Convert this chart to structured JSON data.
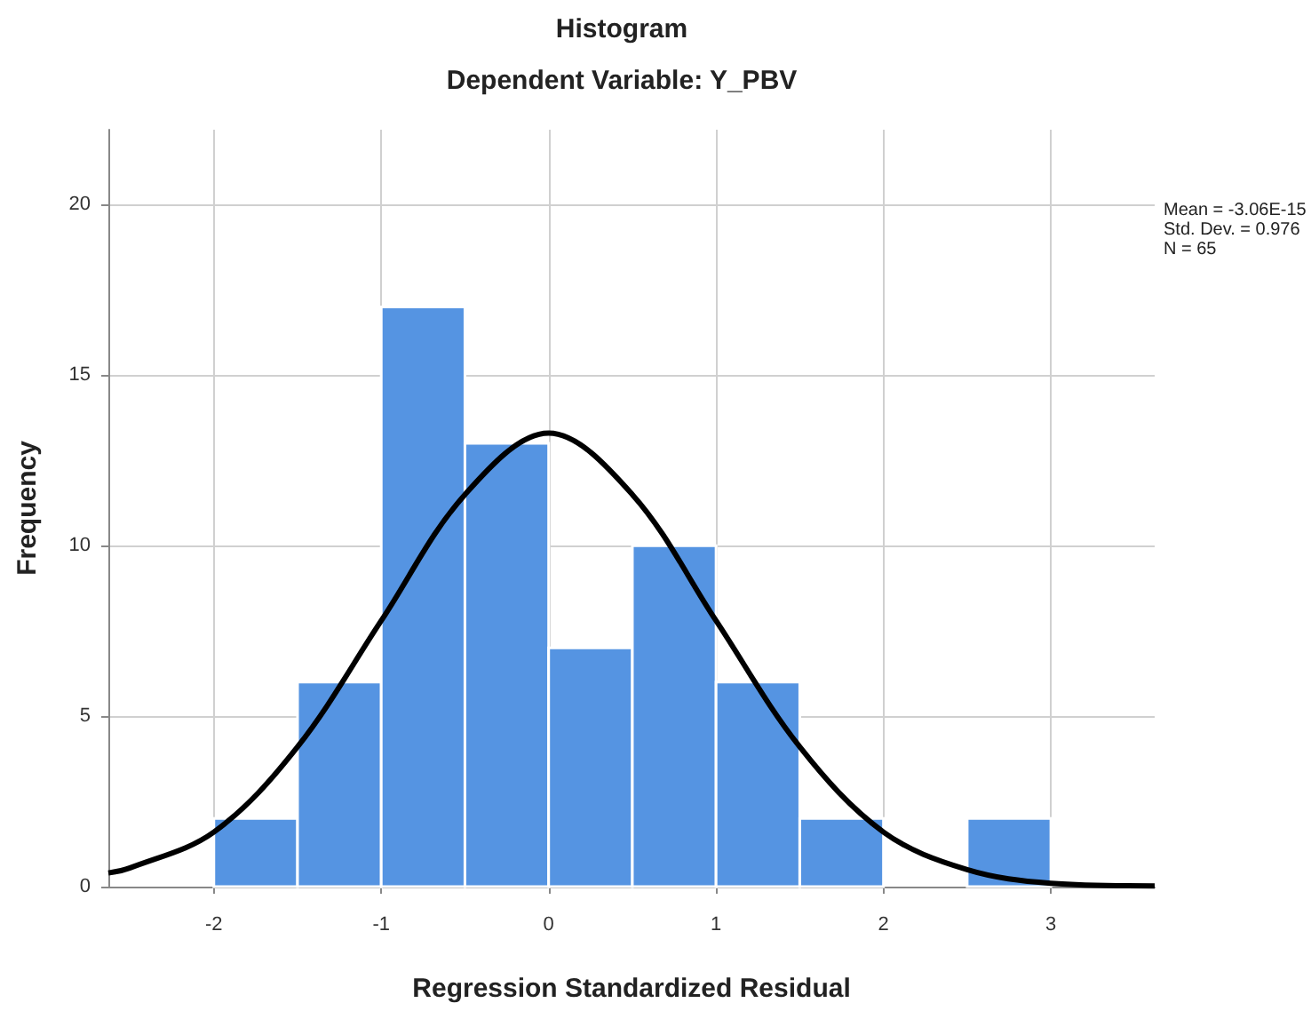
{
  "chart_data": {
    "type": "histogram",
    "title": "Histogram",
    "subtitle": "Dependent Variable: Y_PBV",
    "xlabel": "Regression Standardized Residual",
    "ylabel": "Frequency",
    "bins": [
      -2,
      -1.5,
      -1,
      -0.5,
      0,
      0.5,
      1,
      1.5,
      2,
      2.5,
      3
    ],
    "values": [
      2,
      6,
      17,
      13,
      7,
      10,
      6,
      2,
      0,
      2
    ],
    "color": "#5594e2",
    "series": [
      {
        "type": "line",
        "color": "#000000",
        "x": [
          -2.63,
          -2.5,
          -2,
          -1.5,
          -1,
          -0.5,
          0,
          0.5,
          1,
          1.5,
          2,
          2.5,
          3,
          3.62
        ],
        "values": [
          0.4,
          0.55,
          1.6,
          4.1,
          7.8,
          11.5,
          13.3,
          11.5,
          7.8,
          4.1,
          1.6,
          0.5,
          0.1,
          0.02
        ]
      }
    ],
    "xlim": [
      -2.63,
      3.62
    ],
    "xticks": [
      -2,
      -1,
      0,
      1,
      2,
      3
    ],
    "ylim": [
      0,
      22.2
    ],
    "yticks": [
      0,
      5,
      10,
      15,
      20
    ],
    "grid": true,
    "marker": "none",
    "line_style": "solid",
    "annotations": [
      "Mean = -3.06E-15",
      "Std. Dev. = 0.976",
      "N = 65"
    ]
  }
}
